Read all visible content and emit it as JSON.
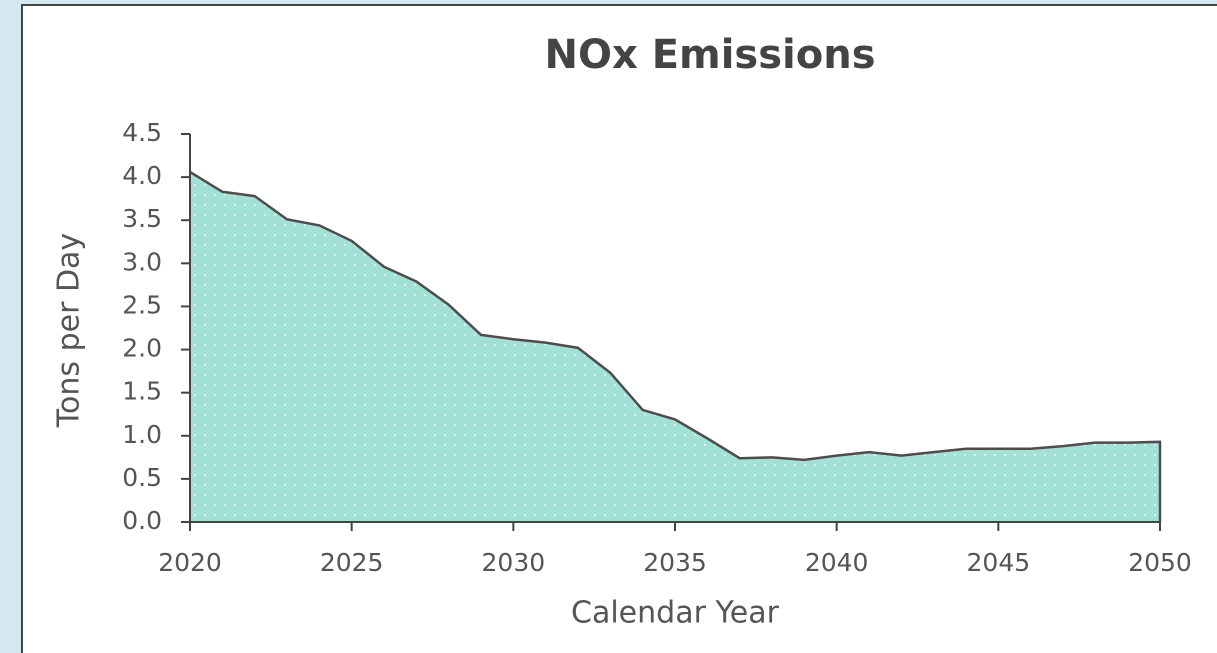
{
  "chart_data": {
    "type": "area",
    "title": "NOx Emissions",
    "x_label": "Calendar Year",
    "y_label": "Tons per Day",
    "x": [
      2020,
      2021,
      2022,
      2023,
      2024,
      2025,
      2026,
      2027,
      2028,
      2029,
      2030,
      2031,
      2032,
      2033,
      2034,
      2035,
      2036,
      2037,
      2038,
      2039,
      2040,
      2041,
      2042,
      2043,
      2044,
      2045,
      2046,
      2047,
      2048,
      2049,
      2050
    ],
    "values": [
      4.06,
      3.83,
      3.78,
      3.51,
      3.44,
      3.26,
      2.96,
      2.79,
      2.52,
      2.17,
      2.12,
      2.08,
      2.02,
      1.73,
      1.3,
      1.19,
      0.97,
      0.74,
      0.75,
      0.72,
      0.77,
      0.81,
      0.77,
      0.81,
      0.85,
      0.85,
      0.85,
      0.88,
      0.92,
      0.92,
      0.93
    ],
    "color": "#a3e1d7",
    "line_color": "#4d4d4d",
    "xlim": [
      2020,
      2050
    ],
    "xticks": [
      2020,
      2025,
      2030,
      2035,
      2040,
      2045,
      2050
    ],
    "ylim": [
      0,
      4.5
    ],
    "yticks": [
      {
        "value": 0,
        "label": "0.0"
      },
      0.5,
      {
        "value": 1,
        "label": "1.0"
      },
      1.5,
      {
        "value": 2,
        "label": "2.0"
      },
      2.5,
      {
        "value": 3,
        "label": "3.0"
      },
      3.5,
      {
        "value": 4,
        "label": "4.0"
      },
      4.5
    ]
  }
}
